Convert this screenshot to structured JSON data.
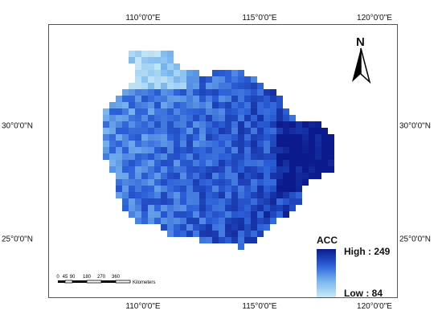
{
  "map": {
    "lon_labels": [
      "110°0'0\"E",
      "115°0'0\"E",
      "120°0'0\"E"
    ],
    "lat_labels": [
      "30°0'0\"N",
      "25°0'0\"N"
    ],
    "north_label": "N"
  },
  "legend": {
    "title": "ACC",
    "high_label": "High : 249",
    "low_label": "Low : 84",
    "high_color": "#0b1a8c",
    "low_color": "#c8eaf8"
  },
  "scale_bar": {
    "ticks": [
      "0",
      "45",
      "90",
      "180",
      "270",
      "360"
    ],
    "unit": "Kilometers"
  }
}
